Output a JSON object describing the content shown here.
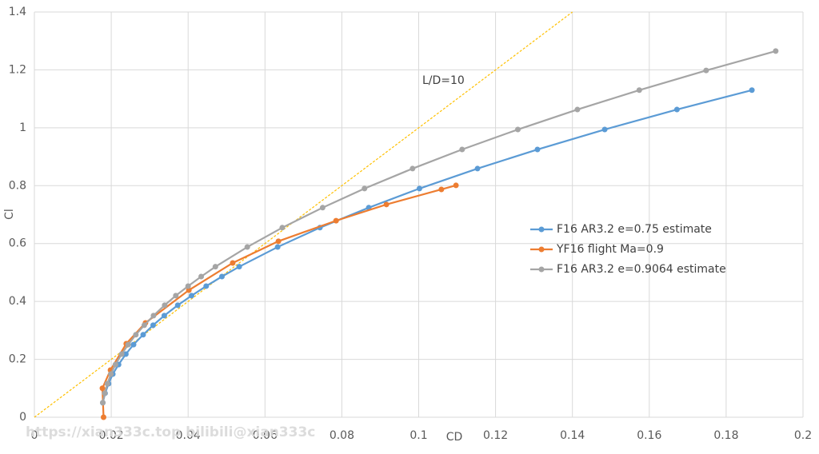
{
  "chart_data": {
    "type": "scatter",
    "x_label": "CD",
    "y_label": "Cl",
    "xlim": [
      0,
      0.2
    ],
    "xticks": [
      0,
      0.02,
      0.04,
      0.06,
      0.08,
      0.1,
      0.12,
      0.14,
      0.16,
      0.18,
      0.2
    ],
    "ylim": [
      0,
      1.4
    ],
    "yticks": [
      0,
      0.2,
      0.4,
      0.6,
      0.8,
      1,
      1.2,
      1.4
    ],
    "grid": true,
    "legend": "right",
    "series": [
      {
        "name": "F16 AR3.2 e=0.75 estimate",
        "color": "#5b9bd5",
        "x": [
          0.0178,
          0.0184,
          0.0193,
          0.0204,
          0.0219,
          0.0238,
          0.0258,
          0.0283,
          0.0309,
          0.0338,
          0.0373,
          0.0409,
          0.0447,
          0.0488,
          0.0533,
          0.0633,
          0.0743,
          0.087,
          0.1002,
          0.1153,
          0.1309,
          0.1484,
          0.1672,
          0.1867
        ],
        "values": [
          0.05,
          0.083,
          0.116,
          0.149,
          0.182,
          0.218,
          0.251,
          0.285,
          0.318,
          0.351,
          0.387,
          0.42,
          0.453,
          0.486,
          0.52,
          0.588,
          0.655,
          0.724,
          0.79,
          0.859,
          0.925,
          0.994,
          1.063,
          1.13
        ]
      },
      {
        "name": "YF16 flight Ma=0.9",
        "color": "#ed7d31",
        "x": [
          0.018,
          0.0177,
          0.0198,
          0.0239,
          0.0289,
          0.0402,
          0.0516,
          0.0635,
          0.0785,
          0.0916,
          0.1059,
          0.1097
        ],
        "values": [
          0,
          0.1,
          0.163,
          0.254,
          0.326,
          0.439,
          0.533,
          0.608,
          0.679,
          0.735,
          0.787,
          0.801
        ]
      },
      {
        "name": "F16 AR3.2 e=0.9064 estimate",
        "color": "#a5a5a5",
        "x": [
          0.0178,
          0.0183,
          0.019,
          0.0199,
          0.0211,
          0.0227,
          0.0244,
          0.0264,
          0.0286,
          0.031,
          0.0339,
          0.0368,
          0.04,
          0.0434,
          0.0471,
          0.0554,
          0.0645,
          0.075,
          0.0859,
          0.0984,
          0.1113,
          0.1258,
          0.1413,
          0.1574,
          0.1748,
          0.1929
        ],
        "values": [
          0.05,
          0.083,
          0.116,
          0.149,
          0.182,
          0.218,
          0.251,
          0.285,
          0.318,
          0.351,
          0.387,
          0.42,
          0.453,
          0.486,
          0.52,
          0.588,
          0.655,
          0.724,
          0.79,
          0.859,
          0.925,
          0.994,
          1.063,
          1.13,
          1.198,
          1.265
        ]
      }
    ],
    "reference_line": {
      "text": "L/D=10",
      "color": "#ffc000",
      "x": [
        0,
        0.14
      ],
      "values": [
        0,
        1.4
      ]
    },
    "watermark": "https://xian333c.top bilibili@xian333c"
  }
}
